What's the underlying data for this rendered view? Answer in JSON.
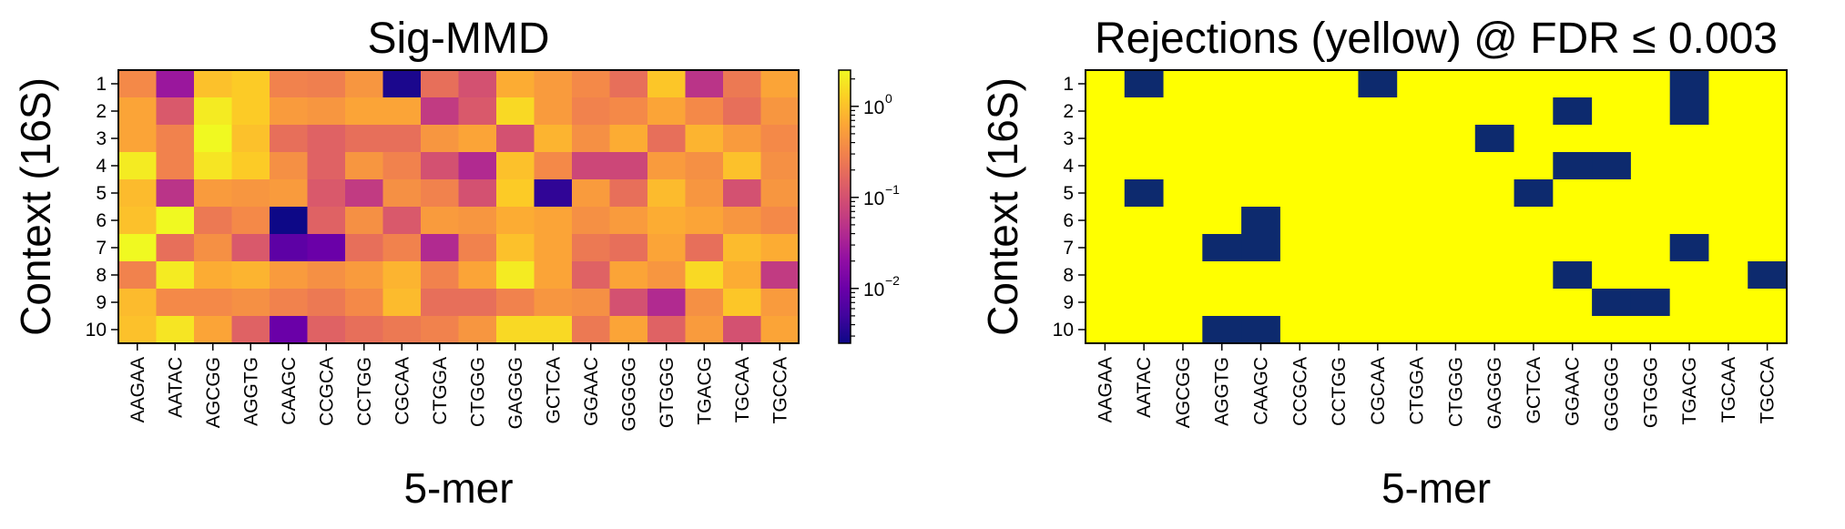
{
  "chart_data": [
    {
      "type": "heatmap",
      "title": "Sig-MMD",
      "xlabel": "5-mer",
      "ylabel": "Context (16S)",
      "x_categories": [
        "AAGAA",
        "AATAC",
        "AGCGG",
        "AGGTG",
        "CAAGC",
        "CCGCA",
        "CCTGG",
        "CGCAA",
        "CTGGA",
        "CTGGG",
        "GAGGG",
        "GCTCA",
        "GGAAC",
        "GGGGG",
        "GTGGG",
        "TGACG",
        "TGCAA",
        "TGCCA"
      ],
      "y_categories": [
        "1",
        "2",
        "3",
        "4",
        "5",
        "6",
        "7",
        "8",
        "9",
        "10"
      ],
      "scale": "log",
      "colormap": "plasma",
      "vmin": 0.0025,
      "vmax": 2.5,
      "colorbar": {
        "position": "right",
        "ticks": [
          {
            "value": 1,
            "base": "10",
            "exp": "0"
          },
          {
            "value": 0.1,
            "base": "10",
            "exp": "−1"
          },
          {
            "value": 0.01,
            "base": "10",
            "exp": "−2"
          }
        ]
      },
      "values": [
        [
          0.35,
          0.025,
          1.0,
          1.2,
          0.3,
          0.28,
          0.45,
          0.003,
          0.2,
          0.1,
          0.7,
          0.5,
          0.35,
          0.2,
          1.1,
          0.05,
          0.25,
          0.6
        ],
        [
          0.6,
          0.12,
          2.0,
          1.2,
          0.5,
          0.45,
          0.6,
          0.6,
          0.06,
          0.12,
          1.5,
          0.5,
          0.3,
          0.35,
          0.6,
          0.35,
          0.2,
          0.45
        ],
        [
          0.6,
          0.3,
          2.5,
          1.0,
          0.2,
          0.15,
          0.2,
          0.2,
          0.45,
          0.6,
          0.1,
          0.8,
          0.4,
          0.7,
          0.2,
          0.8,
          0.5,
          0.35
        ],
        [
          2.0,
          0.3,
          1.8,
          1.2,
          0.4,
          0.15,
          0.45,
          0.3,
          0.1,
          0.04,
          1.0,
          0.35,
          0.08,
          0.08,
          0.5,
          0.4,
          1.0,
          0.4
        ],
        [
          0.9,
          0.05,
          0.5,
          0.45,
          0.5,
          0.12,
          0.06,
          0.4,
          0.3,
          0.1,
          1.2,
          0.004,
          0.5,
          0.2,
          0.9,
          0.45,
          0.1,
          0.45
        ],
        [
          1.0,
          2.5,
          0.25,
          0.35,
          0.0025,
          0.15,
          0.4,
          0.12,
          0.5,
          0.45,
          0.7,
          0.6,
          0.4,
          0.5,
          0.7,
          0.6,
          0.45,
          0.35
        ],
        [
          2.5,
          0.2,
          0.4,
          0.12,
          0.008,
          0.01,
          0.2,
          0.3,
          0.04,
          0.3,
          1.0,
          0.6,
          0.25,
          0.2,
          0.6,
          0.2,
          0.9,
          0.7
        ],
        [
          0.3,
          2.0,
          0.7,
          0.8,
          0.5,
          0.4,
          0.5,
          0.8,
          0.3,
          0.6,
          2.0,
          0.6,
          0.15,
          0.6,
          0.45,
          1.5,
          0.7,
          0.06
        ],
        [
          0.9,
          0.35,
          0.35,
          0.4,
          0.3,
          0.25,
          0.35,
          0.9,
          0.2,
          0.2,
          0.3,
          0.45,
          0.4,
          0.1,
          0.04,
          0.4,
          1.1,
          0.5
        ],
        [
          1.0,
          1.8,
          0.6,
          0.15,
          0.01,
          0.15,
          0.2,
          0.25,
          0.3,
          0.45,
          1.5,
          1.5,
          0.25,
          0.6,
          0.15,
          0.5,
          0.1,
          0.6
        ]
      ]
    },
    {
      "type": "heatmap",
      "title": "Rejections (yellow) @ FDR ≤ 0.003",
      "xlabel": "5-mer",
      "ylabel": "Context (16S)",
      "x_categories": [
        "AAGAA",
        "AATAC",
        "AGCGG",
        "AGGTG",
        "CAAGC",
        "CCGCA",
        "CCTGG",
        "CGCAA",
        "CTGGA",
        "CTGGG",
        "GAGGG",
        "GCTCA",
        "GGAAC",
        "GGGGG",
        "GTGGG",
        "TGACG",
        "TGCAA",
        "TGCCA"
      ],
      "y_categories": [
        "1",
        "2",
        "3",
        "4",
        "5",
        "6",
        "7",
        "8",
        "9",
        "10"
      ],
      "colors": {
        "rejected": "#ffff00",
        "not_rejected": "#0d2a6e"
      },
      "values": [
        [
          1,
          0,
          1,
          1,
          1,
          1,
          1,
          0,
          1,
          1,
          1,
          1,
          1,
          1,
          1,
          0,
          1,
          1
        ],
        [
          1,
          1,
          1,
          1,
          1,
          1,
          1,
          1,
          1,
          1,
          1,
          1,
          0,
          1,
          1,
          0,
          1,
          1
        ],
        [
          1,
          1,
          1,
          1,
          1,
          1,
          1,
          1,
          1,
          1,
          0,
          1,
          1,
          1,
          1,
          1,
          1,
          1
        ],
        [
          1,
          1,
          1,
          1,
          1,
          1,
          1,
          1,
          1,
          1,
          1,
          1,
          0,
          0,
          1,
          1,
          1,
          1
        ],
        [
          1,
          0,
          1,
          1,
          1,
          1,
          1,
          1,
          1,
          1,
          1,
          0,
          1,
          1,
          1,
          1,
          1,
          1
        ],
        [
          1,
          1,
          1,
          1,
          0,
          1,
          1,
          1,
          1,
          1,
          1,
          1,
          1,
          1,
          1,
          1,
          1,
          1
        ],
        [
          1,
          1,
          1,
          0,
          0,
          1,
          1,
          1,
          1,
          1,
          1,
          1,
          1,
          1,
          1,
          0,
          1,
          1
        ],
        [
          1,
          1,
          1,
          1,
          1,
          1,
          1,
          1,
          1,
          1,
          1,
          1,
          0,
          1,
          1,
          1,
          1,
          0
        ],
        [
          1,
          1,
          1,
          1,
          1,
          1,
          1,
          1,
          1,
          1,
          1,
          1,
          1,
          0,
          0,
          1,
          1,
          1
        ],
        [
          1,
          1,
          1,
          0,
          0,
          1,
          1,
          1,
          1,
          1,
          1,
          1,
          1,
          1,
          1,
          1,
          1,
          1
        ]
      ]
    }
  ]
}
